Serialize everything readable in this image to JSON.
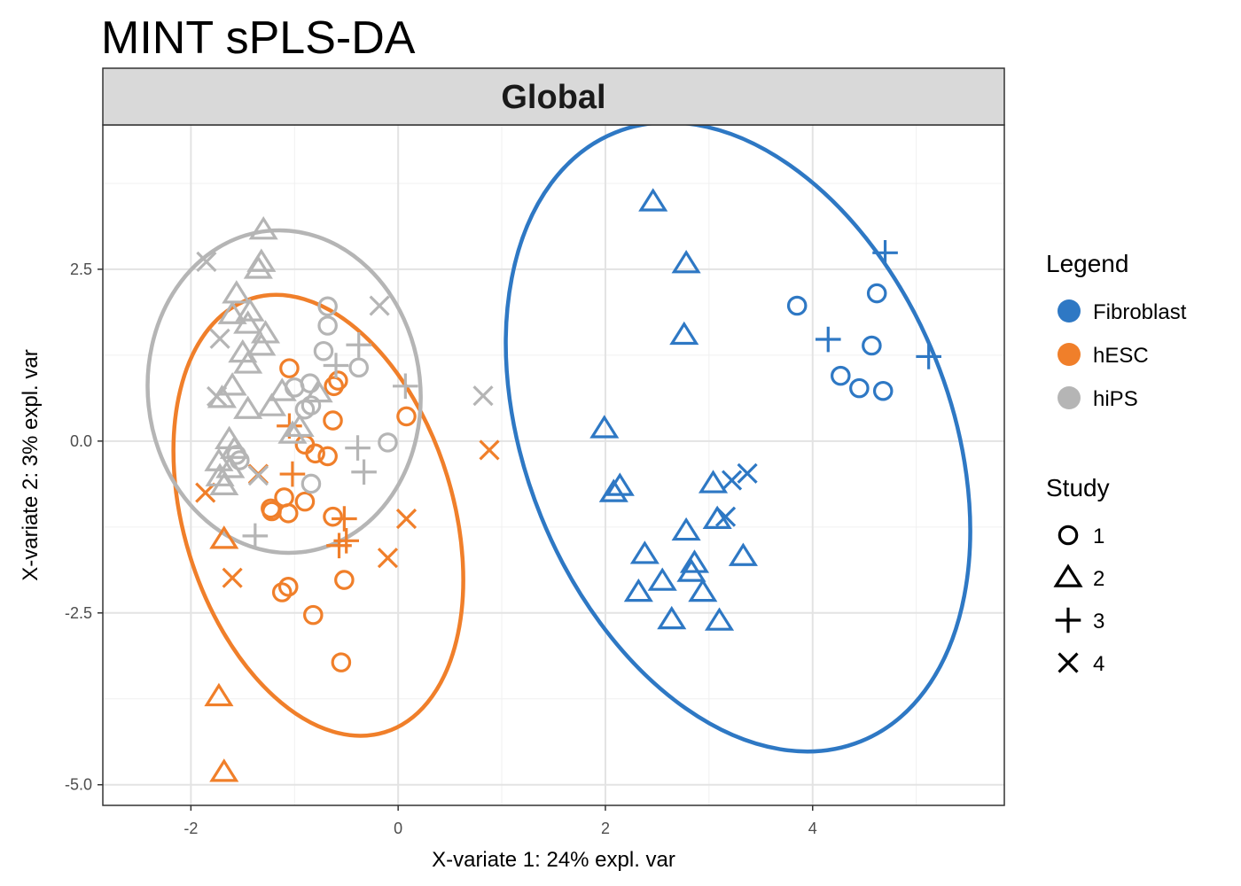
{
  "chart_data": {
    "type": "scatter",
    "title": "MINT sPLS-DA",
    "facet_label": "Global",
    "xlabel": "X-variate 1: 24% expl. var",
    "ylabel": "X-variate 2: 3% expl. var",
    "xlim": [
      -2.85,
      5.85
    ],
    "ylim": [
      -5.3,
      4.6
    ],
    "x_ticks": [
      -2,
      0,
      2,
      4
    ],
    "x_tick_labels": [
      "-2",
      "0",
      "2",
      "4"
    ],
    "y_ticks": [
      -5,
      -2.5,
      0,
      2.5
    ],
    "y_tick_labels": [
      "-5.0",
      "-2.5",
      "0.0",
      "2.5"
    ],
    "grid": true,
    "legend_position": "right",
    "legend_color_title": "Legend",
    "legend_shape_title": "Study",
    "groups": [
      {
        "name": "Fibroblast",
        "color": "#2e78c4"
      },
      {
        "name": "hESC",
        "color": "#f07f2a"
      },
      {
        "name": "hiPS",
        "color": "#b5b5b5"
      }
    ],
    "studies": [
      {
        "name": "1",
        "shape": "circle"
      },
      {
        "name": "2",
        "shape": "triangle"
      },
      {
        "name": "3",
        "shape": "plus"
      },
      {
        "name": "4",
        "shape": "cross"
      }
    ],
    "ellipses": [
      {
        "group": "Fibroblast",
        "color": "#2e78c4",
        "cx": 3.28,
        "cy": 0.06,
        "width": 4.1,
        "height": 9.55,
        "angle_deg": -22
      },
      {
        "group": "hESC",
        "color": "#f07f2a",
        "cx": -0.77,
        "cy": -1.08,
        "width": 2.6,
        "height": 6.6,
        "angle_deg": -17
      },
      {
        "group": "hiPS",
        "color": "#b5b5b5",
        "cx": -1.1,
        "cy": 0.72,
        "width": 2.63,
        "height": 4.7,
        "angle_deg": -6
      }
    ],
    "series": [
      {
        "name": "Fibroblast",
        "points": [
          {
            "x": 3.85,
            "y": 1.97,
            "study": "1"
          },
          {
            "x": 4.62,
            "y": 2.15,
            "study": "1"
          },
          {
            "x": 4.57,
            "y": 1.39,
            "study": "1"
          },
          {
            "x": 4.27,
            "y": 0.95,
            "study": "1"
          },
          {
            "x": 4.45,
            "y": 0.77,
            "study": "1"
          },
          {
            "x": 4.68,
            "y": 0.73,
            "study": "1"
          },
          {
            "x": 2.46,
            "y": 3.48,
            "study": "2"
          },
          {
            "x": 2.78,
            "y": 2.58,
            "study": "2"
          },
          {
            "x": 2.76,
            "y": 1.54,
            "study": "2"
          },
          {
            "x": 1.99,
            "y": 0.18,
            "study": "2"
          },
          {
            "x": 2.14,
            "y": -0.66,
            "study": "2"
          },
          {
            "x": 2.08,
            "y": -0.75,
            "study": "2"
          },
          {
            "x": 3.04,
            "y": -0.62,
            "study": "2"
          },
          {
            "x": 3.08,
            "y": -1.14,
            "study": "2"
          },
          {
            "x": 2.78,
            "y": -1.31,
            "study": "2"
          },
          {
            "x": 2.38,
            "y": -1.65,
            "study": "2"
          },
          {
            "x": 3.33,
            "y": -1.68,
            "study": "2"
          },
          {
            "x": 2.86,
            "y": -1.78,
            "study": "2"
          },
          {
            "x": 2.83,
            "y": -1.91,
            "study": "2"
          },
          {
            "x": 2.55,
            "y": -2.04,
            "study": "2"
          },
          {
            "x": 2.32,
            "y": -2.2,
            "study": "2"
          },
          {
            "x": 2.94,
            "y": -2.2,
            "study": "2"
          },
          {
            "x": 2.64,
            "y": -2.6,
            "study": "2"
          },
          {
            "x": 3.1,
            "y": -2.62,
            "study": "2"
          },
          {
            "x": 4.7,
            "y": 2.74,
            "study": "3"
          },
          {
            "x": 4.15,
            "y": 1.48,
            "study": "3"
          },
          {
            "x": 5.12,
            "y": 1.23,
            "study": "3"
          },
          {
            "x": 3.37,
            "y": -0.47,
            "study": "4"
          },
          {
            "x": 3.22,
            "y": -0.57,
            "study": "4"
          },
          {
            "x": 3.16,
            "y": -1.1,
            "study": "4"
          }
        ]
      },
      {
        "name": "hESC",
        "points": [
          {
            "x": -1.05,
            "y": 1.06,
            "study": "1"
          },
          {
            "x": -0.58,
            "y": 0.88,
            "study": "1"
          },
          {
            "x": -0.62,
            "y": 0.8,
            "study": "1"
          },
          {
            "x": 0.08,
            "y": 0.36,
            "study": "1"
          },
          {
            "x": -0.63,
            "y": 0.3,
            "study": "1"
          },
          {
            "x": -0.9,
            "y": -0.05,
            "study": "1"
          },
          {
            "x": -0.8,
            "y": -0.18,
            "study": "1"
          },
          {
            "x": -0.68,
            "y": -0.22,
            "study": "1"
          },
          {
            "x": -1.1,
            "y": -0.82,
            "study": "1"
          },
          {
            "x": -0.9,
            "y": -0.88,
            "study": "1"
          },
          {
            "x": -1.23,
            "y": -0.98,
            "study": "1"
          },
          {
            "x": -1.22,
            "y": -1.02,
            "study": "1"
          },
          {
            "x": -1.06,
            "y": -1.05,
            "study": "1"
          },
          {
            "x": -0.63,
            "y": -1.1,
            "study": "1"
          },
          {
            "x": -0.52,
            "y": -2.02,
            "study": "1"
          },
          {
            "x": -1.06,
            "y": -2.12,
            "study": "1"
          },
          {
            "x": -1.12,
            "y": -2.2,
            "study": "1"
          },
          {
            "x": -0.82,
            "y": -2.53,
            "study": "1"
          },
          {
            "x": -0.55,
            "y": -3.22,
            "study": "1"
          },
          {
            "x": -1.68,
            "y": -1.43,
            "study": "2"
          },
          {
            "x": -1.73,
            "y": -3.72,
            "study": "2"
          },
          {
            "x": -1.68,
            "y": -4.82,
            "study": "2"
          },
          {
            "x": -1.05,
            "y": 0.22,
            "study": "3"
          },
          {
            "x": -1.02,
            "y": -0.48,
            "study": "3"
          },
          {
            "x": -0.52,
            "y": -1.13,
            "study": "3"
          },
          {
            "x": -0.5,
            "y": -1.45,
            "study": "3"
          },
          {
            "x": -0.57,
            "y": -1.52,
            "study": "3"
          },
          {
            "x": 0.88,
            "y": -0.13,
            "study": "4"
          },
          {
            "x": -1.35,
            "y": -0.48,
            "study": "4"
          },
          {
            "x": -1.86,
            "y": -0.75,
            "study": "4"
          },
          {
            "x": 0.08,
            "y": -1.13,
            "study": "4"
          },
          {
            "x": -0.1,
            "y": -1.7,
            "study": "4"
          },
          {
            "x": -1.6,
            "y": -1.99,
            "study": "4"
          }
        ]
      },
      {
        "name": "hiPS",
        "points": [
          {
            "x": -0.68,
            "y": 1.96,
            "study": "1"
          },
          {
            "x": -0.68,
            "y": 1.68,
            "study": "1"
          },
          {
            "x": -0.72,
            "y": 1.31,
            "study": "1"
          },
          {
            "x": -0.38,
            "y": 1.07,
            "study": "1"
          },
          {
            "x": -0.85,
            "y": 0.84,
            "study": "1"
          },
          {
            "x": -1.0,
            "y": 0.78,
            "study": "1"
          },
          {
            "x": -0.84,
            "y": 0.52,
            "study": "1"
          },
          {
            "x": -0.9,
            "y": 0.46,
            "study": "1"
          },
          {
            "x": -0.1,
            "y": -0.02,
            "study": "1"
          },
          {
            "x": -1.56,
            "y": -0.2,
            "study": "1"
          },
          {
            "x": -1.53,
            "y": -0.28,
            "study": "1"
          },
          {
            "x": -0.84,
            "y": -0.62,
            "study": "1"
          },
          {
            "x": -1.3,
            "y": 3.07,
            "study": "2"
          },
          {
            "x": -1.32,
            "y": 2.6,
            "study": "2"
          },
          {
            "x": -1.35,
            "y": 2.5,
            "study": "2"
          },
          {
            "x": -1.56,
            "y": 2.14,
            "study": "2"
          },
          {
            "x": -1.43,
            "y": 1.88,
            "study": "2"
          },
          {
            "x": -1.6,
            "y": 1.84,
            "study": "2"
          },
          {
            "x": -1.45,
            "y": 1.7,
            "study": "2"
          },
          {
            "x": -1.28,
            "y": 1.56,
            "study": "2"
          },
          {
            "x": -1.32,
            "y": 1.38,
            "study": "2"
          },
          {
            "x": -1.5,
            "y": 1.28,
            "study": "2"
          },
          {
            "x": -1.45,
            "y": 1.12,
            "study": "2"
          },
          {
            "x": -1.6,
            "y": 0.8,
            "study": "2"
          },
          {
            "x": -1.7,
            "y": 0.62,
            "study": "2"
          },
          {
            "x": -1.12,
            "y": 0.72,
            "study": "2"
          },
          {
            "x": -0.77,
            "y": 0.7,
            "study": "2"
          },
          {
            "x": -1.22,
            "y": 0.5,
            "study": "2"
          },
          {
            "x": -1.45,
            "y": 0.46,
            "study": "2"
          },
          {
            "x": -0.95,
            "y": 0.2,
            "study": "2"
          },
          {
            "x": -1.02,
            "y": 0.1,
            "study": "2"
          },
          {
            "x": -1.63,
            "y": 0.02,
            "study": "2"
          },
          {
            "x": -1.58,
            "y": -0.12,
            "study": "2"
          },
          {
            "x": -1.73,
            "y": -0.3,
            "study": "2"
          },
          {
            "x": -1.62,
            "y": -0.4,
            "study": "2"
          },
          {
            "x": -1.72,
            "y": -0.52,
            "study": "2"
          },
          {
            "x": -1.68,
            "y": -0.65,
            "study": "2"
          },
          {
            "x": -0.6,
            "y": 1.1,
            "study": "3"
          },
          {
            "x": -0.38,
            "y": 1.4,
            "study": "3"
          },
          {
            "x": 0.07,
            "y": 0.8,
            "study": "3"
          },
          {
            "x": -0.39,
            "y": -0.1,
            "study": "3"
          },
          {
            "x": -0.33,
            "y": -0.45,
            "study": "3"
          },
          {
            "x": -1.38,
            "y": -1.38,
            "study": "3"
          },
          {
            "x": -0.18,
            "y": 1.97,
            "study": "4"
          },
          {
            "x": -1.85,
            "y": 2.61,
            "study": "4"
          },
          {
            "x": -1.72,
            "y": 1.49,
            "study": "4"
          },
          {
            "x": -1.75,
            "y": 0.65,
            "study": "4"
          },
          {
            "x": 0.82,
            "y": 0.66,
            "study": "4"
          },
          {
            "x": -1.35,
            "y": -0.5,
            "study": "4"
          }
        ]
      }
    ]
  }
}
